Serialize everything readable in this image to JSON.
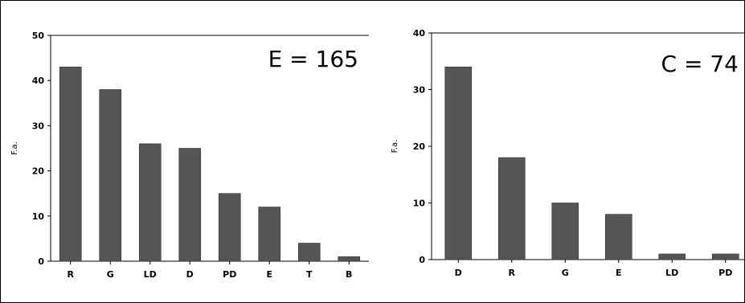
{
  "chart_data": [
    {
      "type": "bar",
      "categories": [
        "R",
        "G",
        "LD",
        "D",
        "PD",
        "E",
        "T",
        "B"
      ],
      "values": [
        43,
        38,
        26,
        25,
        15,
        12,
        4,
        1
      ],
      "ylabel": "F.a.",
      "ylim": [
        0,
        50
      ],
      "yticks": [
        0,
        10,
        20,
        30,
        40,
        50
      ],
      "annotation": "E = 165",
      "grid": false,
      "bar_color": "#555555"
    },
    {
      "type": "bar",
      "categories": [
        "D",
        "R",
        "G",
        "E",
        "LD",
        "PD"
      ],
      "values": [
        34,
        18,
        10,
        8,
        1,
        1
      ],
      "ylabel": "F.a.",
      "ylim": [
        0,
        40
      ],
      "yticks": [
        0,
        10,
        20,
        30,
        40
      ],
      "annotation": "C = 74",
      "grid": false,
      "bar_color": "#555555"
    }
  ]
}
